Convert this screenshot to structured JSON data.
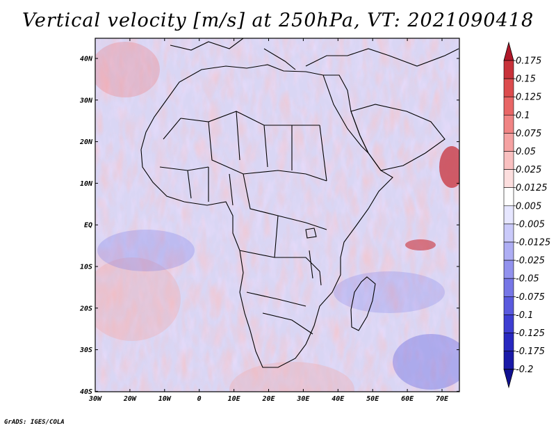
{
  "title": "Vertical velocity [m/s] at 250hPa, VT: 2021090418",
  "credit": "GrADS: IGES/COLA",
  "map": {
    "lon_range": [
      -30,
      75
    ],
    "lat_range": [
      -40,
      45
    ],
    "lat_ticks": [
      "40N",
      "30N",
      "20N",
      "10N",
      "EQ",
      "10S",
      "20S",
      "30S",
      "40S"
    ],
    "lon_ticks": [
      "30W",
      "20W",
      "10W",
      "0",
      "10E",
      "20E",
      "30E",
      "40E",
      "50E",
      "60E",
      "70E"
    ]
  },
  "colorbar": {
    "labels": [
      "0.175",
      "0.15",
      "0.125",
      "0.1",
      "0.075",
      "0.05",
      "0.025",
      "0.0125",
      "0.005",
      "-0.005",
      "-0.0125",
      "-0.025",
      "-0.05",
      "-0.075",
      "-0.1",
      "-0.125",
      "-0.175",
      "-0.2"
    ],
    "colors": [
      "#b0182a",
      "#c8323a",
      "#dc4c4e",
      "#e86666",
      "#f08484",
      "#f5a2a2",
      "#f9c0c0",
      "#fcdede",
      "#ffffff",
      "#e6e6ff",
      "#cacafa",
      "#aeaef4",
      "#9292ee",
      "#7676e6",
      "#5a5ade",
      "#3e3ed2",
      "#2828c0",
      "#1a1aa8",
      "#101090"
    ]
  }
}
